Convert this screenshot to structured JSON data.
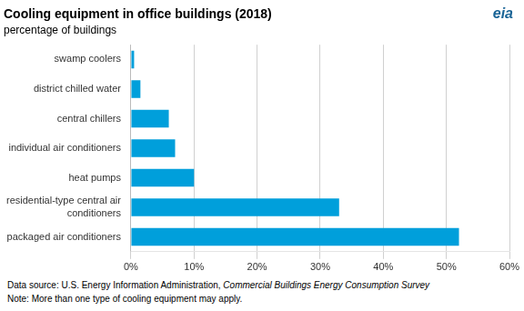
{
  "chart_data": {
    "type": "bar",
    "orientation": "horizontal",
    "title": "Cooling equipment in office buildings (2018)",
    "subtitle": "percentage of buildings",
    "logo": "eia",
    "source": "Data source: U.S. Energy Information Administration, ",
    "source_title": "Commercial Buildings Energy Consumption Survey",
    "note": "Note: More than one type of cooling equipment may apply.",
    "categories": [
      "swamp coolers",
      "district chilled water",
      "central chillers",
      "individual air conditioners",
      "heat pumps",
      "residential-type central air\nconditioners",
      "packaged air conditioners"
    ],
    "values": [
      0.5,
      1.5,
      6,
      7,
      10,
      33,
      52
    ],
    "color": "#009fdb",
    "xlim": [
      0,
      60
    ],
    "xticks": [
      {
        "value": 0,
        "label": "0%"
      },
      {
        "value": 10,
        "label": "10%"
      },
      {
        "value": 20,
        "label": "20%"
      },
      {
        "value": 30,
        "label": "30%"
      },
      {
        "value": 40,
        "label": "40%"
      },
      {
        "value": 50,
        "label": "50%"
      },
      {
        "value": 60,
        "label": "60%"
      }
    ],
    "grid": true
  }
}
